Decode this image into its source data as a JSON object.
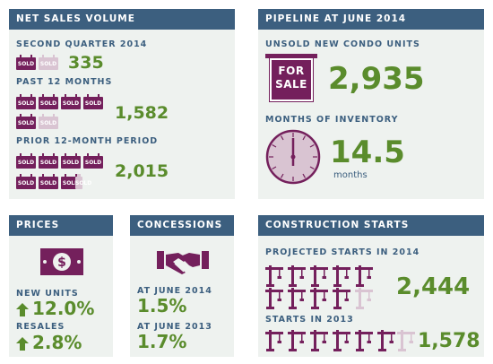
{
  "net_sales": {
    "title": "NET SALES VOLUME",
    "q2_label": "SECOND QUARTER 2014",
    "q2_value": "335",
    "past12_label": "PAST 12 MONTHS",
    "past12_value": "1,582",
    "prior12_label": "PRIOR 12-MONTH PERIOD",
    "prior12_value": "2,015",
    "tag_text": "SOLD"
  },
  "pipeline": {
    "title": "PIPELINE AT JUNE 2014",
    "unsold_label": "UNSOLD NEW CONDO UNITS",
    "sign_line1": "FOR",
    "sign_line2": "SALE",
    "unsold_value": "2,935",
    "moi_label": "MONTHS OF INVENTORY",
    "moi_value": "14.5",
    "moi_unit": "months"
  },
  "prices": {
    "title": "PRICES",
    "new_label": "NEW UNITS",
    "new_value": "12.0%",
    "resales_label": "RESALES",
    "resales_value": "2.8%"
  },
  "concessions": {
    "title": "CONCESSIONS",
    "june2014_label": "AT JUNE 2014",
    "june2014_value": "1.5%",
    "june2013_label": "AT JUNE 2013",
    "june2013_value": "1.7%"
  },
  "construction": {
    "title": "CONSTRUCTION STARTS",
    "projected_label": "PROJECTED STARTS IN 2014",
    "projected_value": "2,444",
    "starts2013_label": "STARTS IN 2013",
    "starts2013_value": "1,578"
  },
  "colors": {
    "header": "#3c5f7f",
    "panel": "#eef2ef",
    "accent_purple": "#74205c",
    "faded_purple": "#d9c4d2",
    "value_green": "#5a8c2c"
  },
  "icons": {
    "sold": "sold-tag-icon",
    "for_sale": "for-sale-sign-icon",
    "clock": "clock-icon",
    "dollar": "dollar-bill-icon",
    "handshake": "handshake-icon",
    "crane": "construction-crane-icon",
    "arrow": "up-arrow-icon"
  }
}
